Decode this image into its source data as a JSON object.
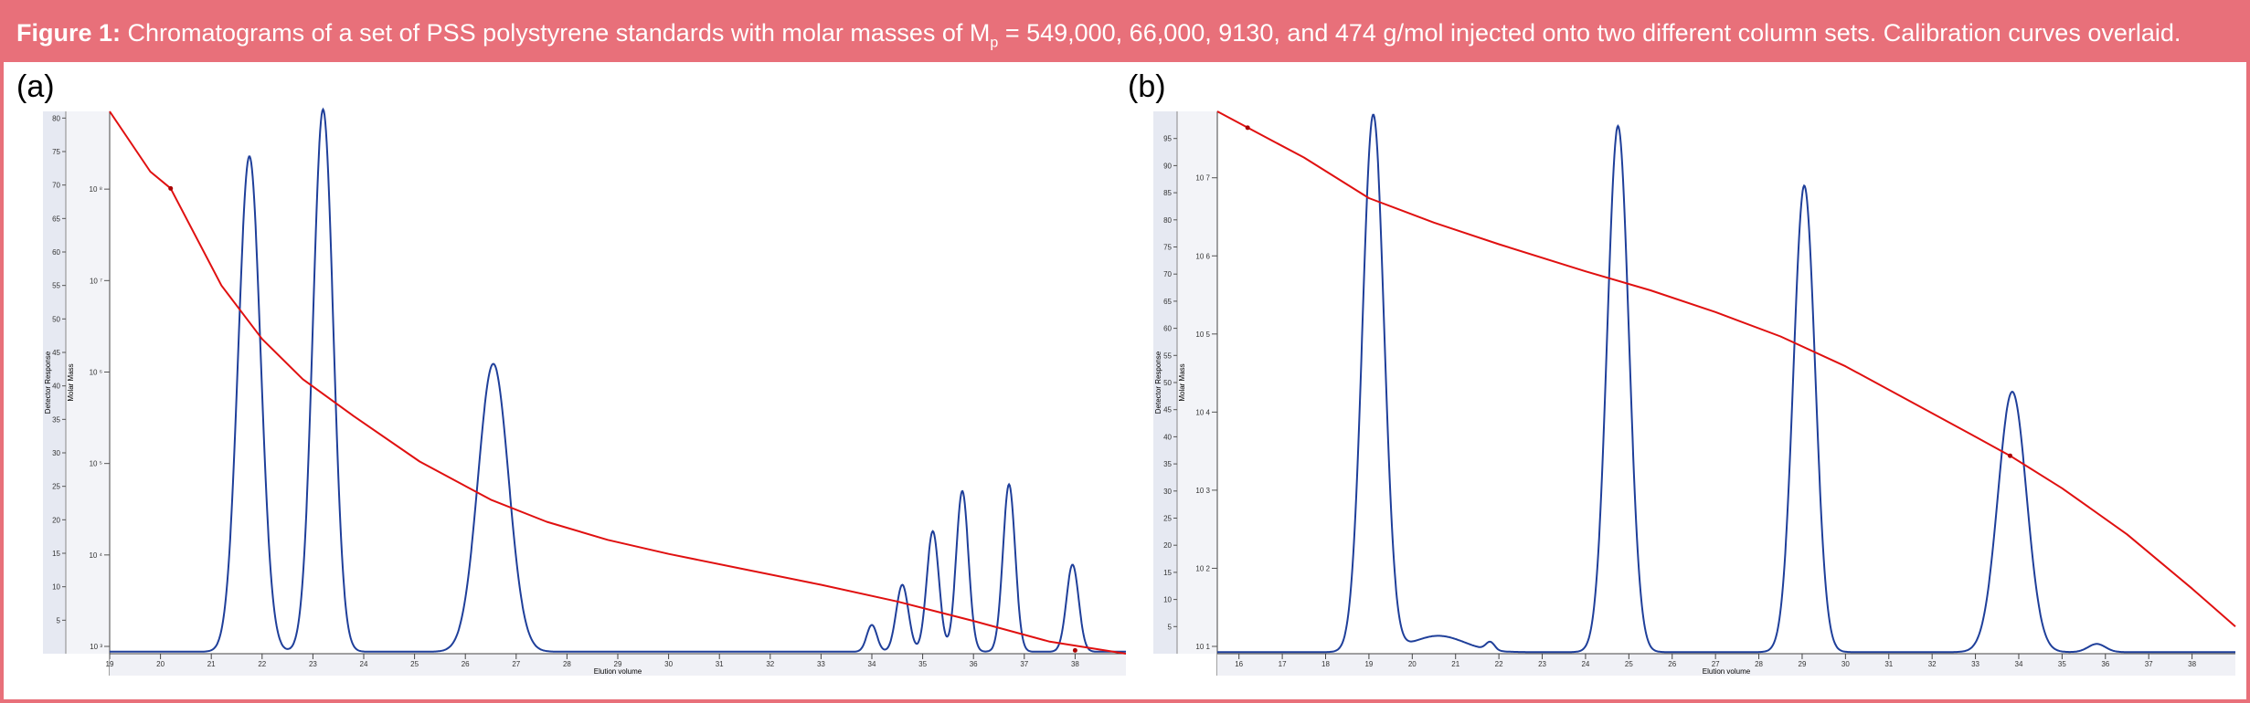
{
  "caption": {
    "label": "Figure 1:",
    "text": " Chromatograms of a set of PSS polystyrene standards with molar masses of M",
    "subscript": "p",
    "text_after": " = 549,000, 66,000, 9130, and 474 g/mol injected onto two different column sets. Calibration curves overlaid."
  },
  "colors": {
    "caption_bg": "#e8707a",
    "chromatogram": "#1f3f9a",
    "calibration": "#e01010",
    "axis_bg": "#e6e9f2"
  },
  "chart_data": [
    {
      "panel_label": "(a)",
      "type": "line",
      "xlabel": "Elution volume",
      "ylabel_left": "Detector Response",
      "ylabel_right": "Molar Mass",
      "xlim": [
        19,
        39
      ],
      "x_ticks": [
        "19",
        "20",
        "21",
        "22",
        "23",
        "24",
        "25",
        "26",
        "27",
        "28",
        "29",
        "30",
        "31",
        "32",
        "33",
        "34",
        "35",
        "36",
        "37",
        "38"
      ],
      "ylim_left": [
        0,
        81
      ],
      "y_ticks_left": [
        "5",
        "10",
        "15",
        "20",
        "25",
        "30",
        "35",
        "40",
        "45",
        "50",
        "55",
        "60",
        "65",
        "70",
        "75",
        "80"
      ],
      "y_ticks_right": [
        "10 ³",
        "10 ⁴",
        "10 ⁵",
        "10 ⁶",
        "10 ⁷",
        "10 ⁸"
      ],
      "chromatogram_peaks": [
        {
          "x": 21.75,
          "h": 74,
          "s": 0.22
        },
        {
          "x": 23.2,
          "h": 81,
          "s": 0.2
        },
        {
          "x": 26.55,
          "h": 43,
          "s": 0.3
        },
        {
          "x": 34.0,
          "h": 4,
          "s": 0.1
        },
        {
          "x": 34.6,
          "h": 10,
          "s": 0.12
        },
        {
          "x": 35.2,
          "h": 18,
          "s": 0.12
        },
        {
          "x": 35.78,
          "h": 24,
          "s": 0.12
        },
        {
          "x": 36.7,
          "h": 25,
          "s": 0.12
        },
        {
          "x": 37.95,
          "h": 13,
          "s": 0.12
        }
      ],
      "calibration_curve": [
        [
          19,
          81
        ],
        [
          19.8,
          72
        ],
        [
          20.2,
          69.5
        ],
        [
          21.2,
          55
        ],
        [
          22,
          47
        ],
        [
          22.8,
          41
        ],
        [
          23.8,
          35.5
        ],
        [
          25.1,
          28.7
        ],
        [
          26.5,
          23
        ],
        [
          27.6,
          19.7
        ],
        [
          28.8,
          17
        ],
        [
          30,
          14.9
        ],
        [
          31.5,
          12.6
        ],
        [
          33,
          10.3
        ],
        [
          34.5,
          7.8
        ],
        [
          36,
          4.9
        ],
        [
          37.5,
          1.8
        ],
        [
          39,
          0
        ]
      ],
      "calibration_markers": [
        [
          20.2,
          69.5
        ],
        [
          38,
          0.5
        ]
      ]
    },
    {
      "panel_label": "(b)",
      "type": "line",
      "xlabel": "Elution volume",
      "ylabel_left": "Detector Response",
      "ylabel_right": "Molar Mass",
      "xlim": [
        15.5,
        39
      ],
      "x_ticks": [
        "16",
        "17",
        "18",
        "19",
        "20",
        "21",
        "22",
        "23",
        "24",
        "25",
        "26",
        "27",
        "28",
        "29",
        "30",
        "31",
        "32",
        "33",
        "34",
        "35",
        "36",
        "37",
        "38"
      ],
      "ylim_left": [
        0,
        100
      ],
      "y_ticks_left": [
        "5",
        "10",
        "15",
        "20",
        "25",
        "30",
        "35",
        "40",
        "45",
        "50",
        "55",
        "60",
        "65",
        "70",
        "75",
        "80",
        "85",
        "90",
        "95"
      ],
      "y_ticks_right": [
        "10 1",
        "10 2",
        "10 3",
        "10 4",
        "10 5",
        "10 6",
        "10 7"
      ],
      "chromatogram_peaks": [
        {
          "x": 19.1,
          "h": 99,
          "s": 0.25
        },
        {
          "x": 24.75,
          "h": 97,
          "s": 0.25
        },
        {
          "x": 29.05,
          "h": 86,
          "s": 0.25
        },
        {
          "x": 33.85,
          "h": 48,
          "s": 0.33
        },
        {
          "x": 20.6,
          "h": 3,
          "s": 0.6
        },
        {
          "x": 21.8,
          "h": 1.5,
          "s": 0.1
        },
        {
          "x": 35.8,
          "h": 1.5,
          "s": 0.2
        }
      ],
      "calibration_curve": [
        [
          15.5,
          100
        ],
        [
          16.2,
          97
        ],
        [
          17.5,
          91.5
        ],
        [
          19,
          84
        ],
        [
          20.5,
          79.5
        ],
        [
          22,
          75.5
        ],
        [
          24,
          70.5
        ],
        [
          25.5,
          67
        ],
        [
          27,
          63
        ],
        [
          28.5,
          58.5
        ],
        [
          30,
          53
        ],
        [
          31.5,
          46.5
        ],
        [
          33,
          40
        ],
        [
          33.8,
          36.5
        ],
        [
          35,
          30.5
        ],
        [
          36.5,
          22
        ],
        [
          38,
          12
        ],
        [
          39,
          5
        ]
      ],
      "calibration_markers": [
        [
          16.2,
          97
        ],
        [
          33.8,
          36.5
        ]
      ]
    }
  ]
}
